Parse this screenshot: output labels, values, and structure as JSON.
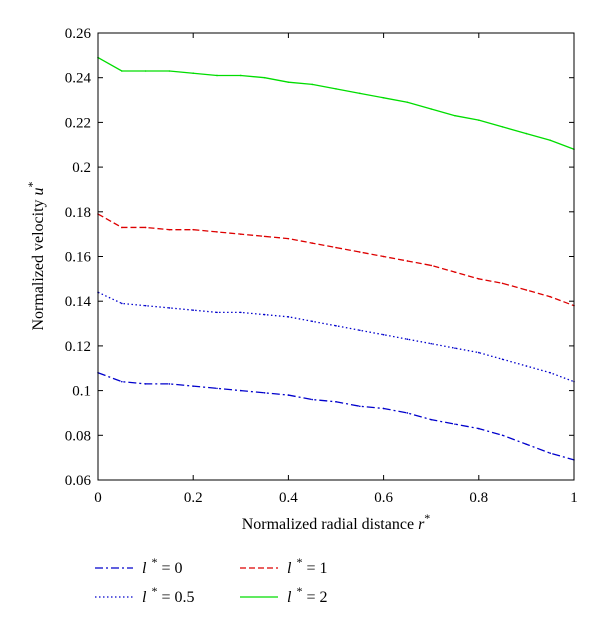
{
  "chart_data": {
    "type": "line",
    "xlabel_main": "Normalized radial distance ",
    "xlabel_var": "r",
    "xlabel_sup": "*",
    "ylabel_main": "Normalized velocity ",
    "ylabel_var": "u",
    "ylabel_sup": "*",
    "xlim": [
      0,
      1
    ],
    "ylim": [
      0.06,
      0.26
    ],
    "grid": false,
    "legend_position": "bottom",
    "x_ticks": [
      "0",
      "0.2",
      "0.4",
      "0.6",
      "0.8",
      "1"
    ],
    "y_ticks": [
      "0.06",
      "0.08",
      "0.1",
      "0.12",
      "0.14",
      "0.16",
      "0.18",
      "0.2",
      "0.22",
      "0.24",
      "0.26"
    ],
    "x": [
      0.0,
      0.05,
      0.1,
      0.15,
      0.2,
      0.25,
      0.3,
      0.35,
      0.4,
      0.45,
      0.5,
      0.55,
      0.6,
      0.65,
      0.7,
      0.75,
      0.8,
      0.85,
      0.9,
      0.95,
      1.0
    ],
    "series": [
      {
        "legend_var": "l",
        "legend_sup": "*",
        "legend_value": " = 0",
        "color": "#0000cc",
        "style": "dashdot",
        "values": [
          0.108,
          0.104,
          0.103,
          0.103,
          0.102,
          0.101,
          0.1,
          0.099,
          0.098,
          0.096,
          0.095,
          0.093,
          0.092,
          0.09,
          0.087,
          0.085,
          0.083,
          0.08,
          0.076,
          0.072,
          0.069
        ]
      },
      {
        "legend_var": "l",
        "legend_sup": "*",
        "legend_value": " = 0.5",
        "color": "#0000cc",
        "style": "dotted",
        "values": [
          0.144,
          0.139,
          0.138,
          0.137,
          0.136,
          0.135,
          0.135,
          0.134,
          0.133,
          0.131,
          0.129,
          0.127,
          0.125,
          0.123,
          0.121,
          0.119,
          0.117,
          0.114,
          0.111,
          0.108,
          0.104
        ]
      },
      {
        "legend_var": "l",
        "legend_sup": "*",
        "legend_value": " = 1",
        "color": "#dd0000",
        "style": "dashed",
        "values": [
          0.179,
          0.173,
          0.173,
          0.172,
          0.172,
          0.171,
          0.17,
          0.169,
          0.168,
          0.166,
          0.164,
          0.162,
          0.16,
          0.158,
          0.156,
          0.153,
          0.15,
          0.148,
          0.145,
          0.142,
          0.138
        ]
      },
      {
        "legend_var": "l",
        "legend_sup": "*",
        "legend_value": " = 2",
        "color": "#00dd00",
        "style": "solid",
        "values": [
          0.249,
          0.243,
          0.243,
          0.243,
          0.242,
          0.241,
          0.241,
          0.24,
          0.238,
          0.237,
          0.235,
          0.233,
          0.231,
          0.229,
          0.226,
          0.223,
          0.221,
          0.218,
          0.215,
          0.212,
          0.208
        ]
      }
    ]
  }
}
